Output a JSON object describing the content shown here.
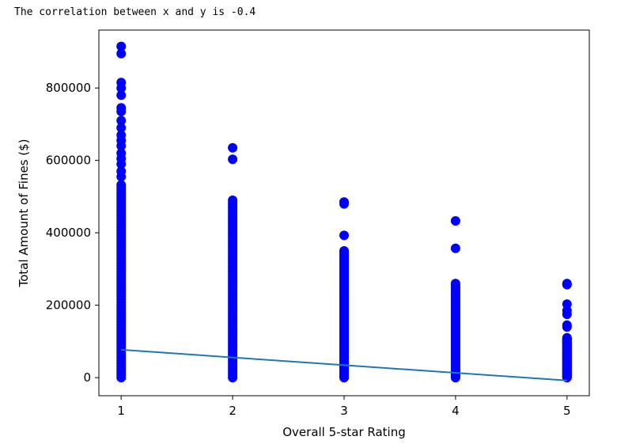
{
  "output": {
    "text": "The correlation between x and y is -0.4"
  },
  "chart_data": {
    "type": "scatter",
    "title": "",
    "xlabel": "Overall 5-star Rating",
    "ylabel": "Total Amount of Fines ($)",
    "xlim": [
      0.8,
      5.2
    ],
    "ylim": [
      -50000,
      960000
    ],
    "x_ticks": [
      1,
      2,
      3,
      4,
      5
    ],
    "y_ticks": [
      0,
      200000,
      400000,
      600000,
      800000
    ],
    "grid": false,
    "colors": {
      "points": "#0000ff",
      "fit_line": "#1f77b4"
    },
    "series": [
      {
        "type": "scatter",
        "columns": [
          {
            "x": 1,
            "y_range": [
              0,
              540000
            ],
            "outliers": [
              915000,
              895000,
              815000,
              800000,
              780000,
              745000,
              735000,
              710000,
              690000,
              670000,
              655000,
              640000,
              620000,
              605000,
              590000,
              570000,
              555000
            ]
          },
          {
            "x": 2,
            "y_range": [
              0,
              490000
            ],
            "outliers": [
              635000,
              603000
            ]
          },
          {
            "x": 3,
            "y_range": [
              0,
              350000
            ],
            "outliers": [
              485000,
              480000,
              393000
            ]
          },
          {
            "x": 4,
            "y_range": [
              0,
              260000
            ],
            "outliers": [
              433000,
              357000
            ]
          },
          {
            "x": 5,
            "y_range": [
              0,
              110000
            ],
            "outliers": [
              260000,
              257000,
              203000,
              185000,
              175000,
              145000,
              140000
            ]
          }
        ]
      },
      {
        "type": "line",
        "x": [
          1,
          5
        ],
        "y": [
          77000,
          -8000
        ]
      }
    ]
  }
}
